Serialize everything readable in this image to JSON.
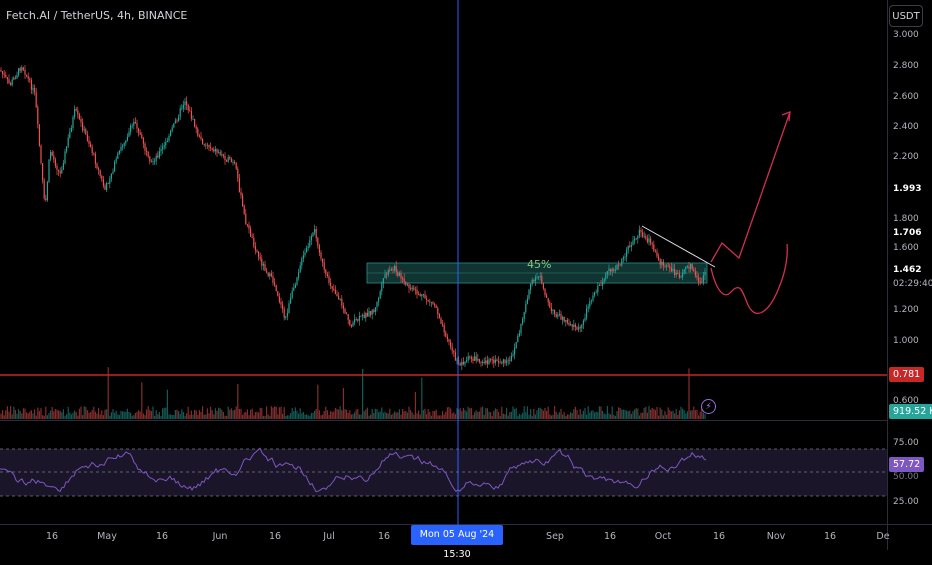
{
  "header": {
    "symbol_title": "Fetch.AI / TetherUS, 4h, BINANCE",
    "currency_button": "USDT"
  },
  "price_axis": {
    "labels": [
      "3.000",
      "2.800",
      "2.600",
      "2.400",
      "2.200",
      "1.993",
      "1.800",
      "1.706",
      "1.600",
      "1.462",
      "1.200",
      "1.000",
      "0.600"
    ],
    "countdown": "02:29:40",
    "support_price_tag": "0.781",
    "volume_tag": "919.52 K"
  },
  "rsi_axis": {
    "labels": [
      "75.00",
      "50.00",
      "25.00"
    ],
    "value_tag": "57.72"
  },
  "time_axis": {
    "labels": [
      "16",
      "May",
      "16",
      "Jun",
      "16",
      "Jul",
      "16",
      "Sep",
      "16",
      "Oct",
      "16",
      "Nov",
      "16",
      "De"
    ],
    "crosshair_label": "Mon 05 Aug '24   15:30"
  },
  "annotations": {
    "zone_percent": "45%"
  },
  "colors": {
    "background": "#000000",
    "up_candle": "#26a69a",
    "down_candle": "#ef5350",
    "support_line": "#c62828",
    "zone": "#1b5e5a",
    "rsi_line": "#7e57c2",
    "crosshair": "#2962ff",
    "projection": "#d32f4f"
  },
  "icons": {
    "alert": "lightning-icon"
  }
}
